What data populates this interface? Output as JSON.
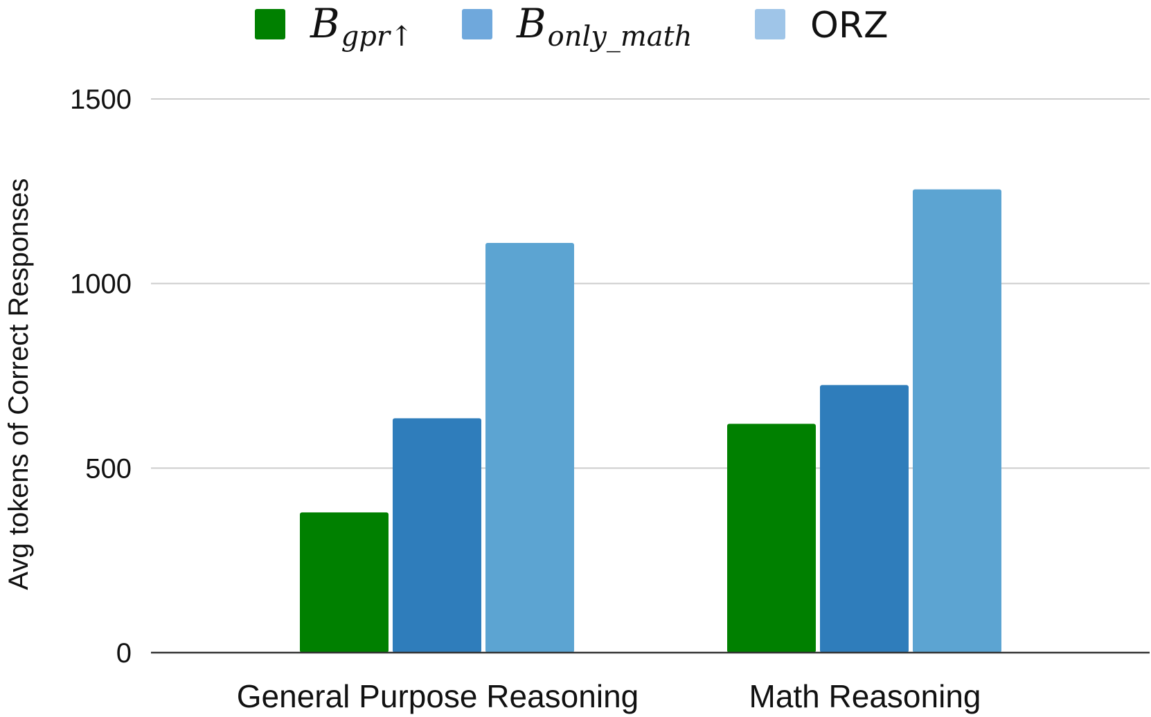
{
  "chart_data": {
    "type": "bar",
    "title": "",
    "xlabel": "",
    "ylabel": "Avg tokens of Correct Responses",
    "categories": [
      "General Purpose Reasoning",
      "Math Reasoning"
    ],
    "series": [
      {
        "name": "gpr↑",
        "legend_base": "B",
        "legend_sub": "gpr↑",
        "values": [
          380,
          620
        ],
        "color": "#008000",
        "legend_color": "#008000"
      },
      {
        "name": "only_math",
        "legend_base": "B",
        "legend_sub": "only_math",
        "values": [
          635,
          725
        ],
        "color": "#2f7dbb",
        "legend_color": "#6fa8dc"
      },
      {
        "name": "ORZ",
        "legend_base": "",
        "legend_sub": "",
        "values": [
          1110,
          1255
        ],
        "color": "#5ca4d2",
        "legend_color": "#9fc5e8"
      }
    ],
    "ylim": [
      0,
      1500
    ],
    "yticks": [
      0,
      500,
      1000,
      1500
    ],
    "grid": true,
    "legend_position": "top"
  }
}
